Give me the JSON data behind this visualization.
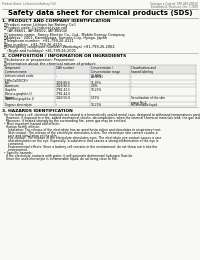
{
  "bg_color": "#ffffff",
  "paper_color": "#f8f8f5",
  "header_left": "Product Name: Lithium Ion Battery Cell",
  "header_right_line1": "Substance Control: SRP-049-09010",
  "header_right_line2": "Established / Revision: Dec.7.2009",
  "title": "Safety data sheet for chemical products (SDS)",
  "s1_title": "1. PRODUCT AND COMPANY IDENTIFICATION",
  "s1_lines": [
    "・Product name: Lithium Ion Battery Cell",
    "・Product code: Cylindrical-type cell",
    "   (AP-86601, IAP-86502, IAP-86504)",
    "・Company name:  Sanyo Electric Co., Ltd., Mobile Energy Company",
    "・Address:  2001, Kamioikawa, Sumoto-City, Hyogo, Japan",
    "・Telephone number:  +81-799-26-4111",
    "・Fax number:  +81-799-26-4120",
    "・Emergency telephone number (Weekdays) +81-799-26-2062",
    "   (Night and holidays) +81-799-26-2001"
  ],
  "s2_title": "2. COMPOSITION / INFORMATION ON INGREDIENTS",
  "s2_pre": [
    "・Substance or preparation: Preparation",
    "・Information about the chemical nature of product:"
  ],
  "tbl_headers": [
    "Component\nCommon name",
    "CAS number",
    "Concentration /\nConcentration range\n(wt-95%)",
    "Classification and\nhazard labeling"
  ],
  "tbl_rows": [
    [
      "Lithium cobalt oxide\n(LiMn-CoO2(CX))",
      "-",
      "30-80%",
      "-"
    ],
    [
      "Iron",
      "7439-89-6",
      "15-35%",
      "-"
    ],
    [
      "Aluminum",
      "7429-90-5",
      "2-8%",
      "-"
    ],
    [
      "Graphite\n(Meso-a-graphite-1)\n(Artificial graphite-1)",
      "7782-42-5\n7782-44-0",
      "10-25%",
      "-"
    ],
    [
      "Copper",
      "7440-50-8",
      "5-15%",
      "Sensitization of the skin\ngroup No.2"
    ],
    [
      "Organic electrolyte",
      "-",
      "10-20%",
      "Inflammable liquid"
    ]
  ],
  "s3_title": "3. HAZARDS IDENTIFICATION",
  "s3_para1": "For the battery cell, chemical materials are stored in a hermetically sealed metal case, designed to withstand temperatures produced by electric-chemical reaction during normal use. As a result, during normal use, there is no physical danger of ignition or explosion and there is no danger of hazardous materials leakage.",
  "s3_para2": "  However, if exposed to a fire, added mechanical shocks, decomposition, when the internal chemical materials leak, the gas leakage cannot be operated. The battery cell case will be incinerated of fire-extreme, hazardous materials may be released.",
  "s3_para3": "  Moreover, if heated strongly by the surrounding fire, some gas may be emitted.",
  "s3_bullet1": "• Most important hazard and effects:",
  "s3_human": [
    "  Human health effects:",
    "    Inhalation: The release of the electrolyte has an anesthesia action and stimulates in respiratory tract.",
    "    Skin contact: The release of the electrolyte stimulates a skin. The electrolyte skin contact causes a",
    "    sore and stimulation on the skin.",
    "    Eye contact: The release of the electrolyte stimulates eyes. The electrolyte eye contact causes a sore",
    "    and stimulation on the eye. Especially, a substance that causes a strong inflammation of the eye is",
    "    contained.",
    "    Environmental effects: Since a battery cell remains in the environment, do not throw out it into the",
    "    environment."
  ],
  "s3_bullet2": "• Specific hazards:",
  "s3_specific": [
    "  If the electrolyte contacts with water, it will generate detrimental hydrogen fluoride.",
    "  Since the used electrolyte is inflammable liquid, do not bring close to fire."
  ]
}
